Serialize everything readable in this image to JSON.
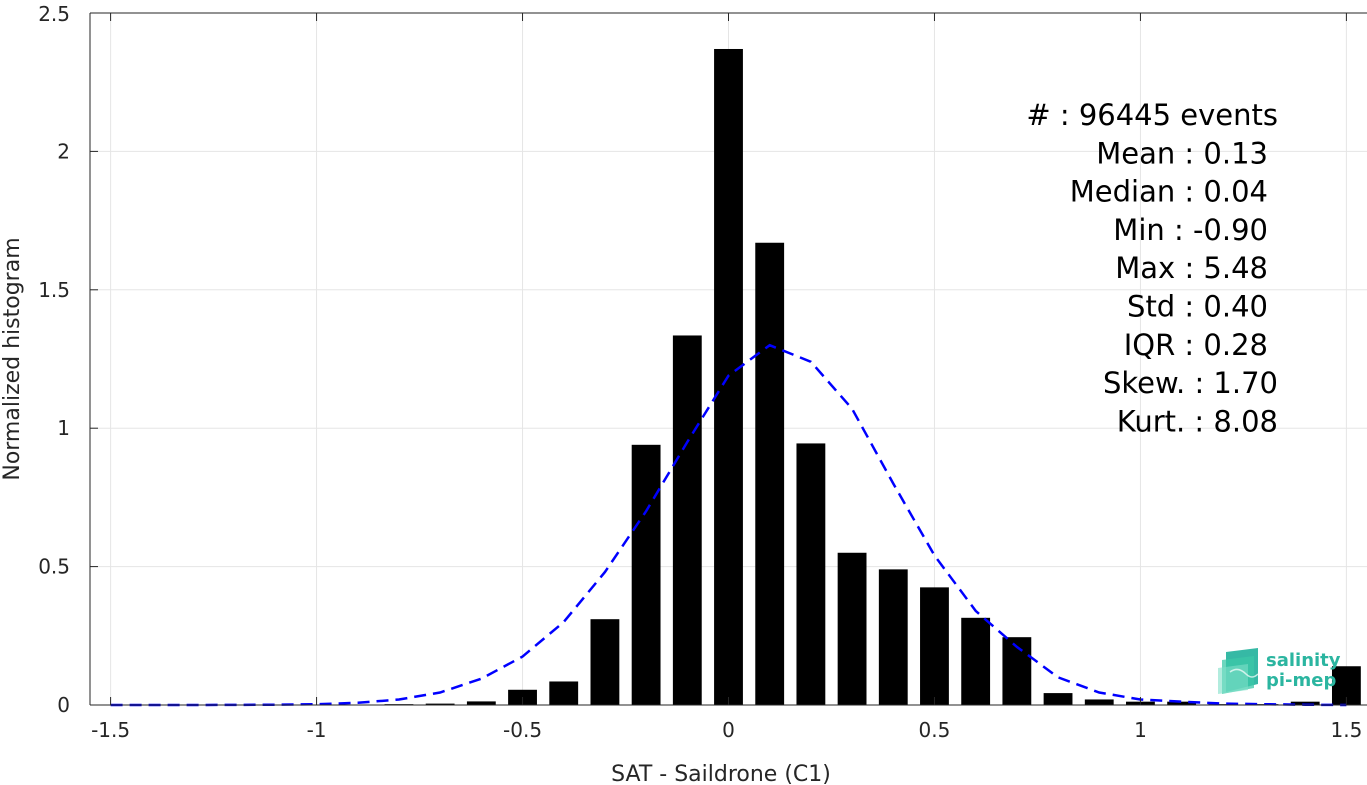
{
  "chart_data": {
    "type": "bar",
    "title": "",
    "xlabel": "SAT - Saildrone (C1)",
    "ylabel": "Normalized histogram",
    "xlim": [
      -1.55,
      1.55
    ],
    "ylim": [
      0,
      2.5
    ],
    "grid": true,
    "x_ticks": [
      {
        "value": -1.5,
        "label": "-1.5"
      },
      {
        "value": -1,
        "label": "-1"
      },
      {
        "value": -0.5,
        "label": "-0.5"
      },
      {
        "value": 0,
        "label": "0"
      },
      {
        "value": 0.5,
        "label": "0.5"
      },
      {
        "value": 1,
        "label": "1"
      },
      {
        "value": 1.5,
        "label": "1.5"
      }
    ],
    "y_ticks": [
      {
        "value": 0,
        "label": "0"
      },
      {
        "value": 0.5,
        "label": "0.5"
      },
      {
        "value": 1,
        "label": "1"
      },
      {
        "value": 1.5,
        "label": "1.5"
      },
      {
        "value": 2,
        "label": "2"
      },
      {
        "value": 2.5,
        "label": "2.5"
      }
    ],
    "bar_width": 0.07,
    "bars": [
      {
        "x": -1.5,
        "y": 0.0
      },
      {
        "x": -1.4,
        "y": 0.0
      },
      {
        "x": -1.3,
        "y": 0.0
      },
      {
        "x": -1.2,
        "y": 0.0
      },
      {
        "x": -1.1,
        "y": 0.0
      },
      {
        "x": -1.0,
        "y": 0.0
      },
      {
        "x": -0.9,
        "y": 0.001
      },
      {
        "x": -0.8,
        "y": 0.003
      },
      {
        "x": -0.7,
        "y": 0.005
      },
      {
        "x": -0.6,
        "y": 0.013
      },
      {
        "x": -0.5,
        "y": 0.055
      },
      {
        "x": -0.4,
        "y": 0.085
      },
      {
        "x": -0.3,
        "y": 0.31
      },
      {
        "x": -0.2,
        "y": 0.94
      },
      {
        "x": -0.1,
        "y": 1.335
      },
      {
        "x": 0.0,
        "y": 2.37
      },
      {
        "x": 0.1,
        "y": 1.67
      },
      {
        "x": 0.2,
        "y": 0.945
      },
      {
        "x": 0.3,
        "y": 0.55
      },
      {
        "x": 0.4,
        "y": 0.49
      },
      {
        "x": 0.5,
        "y": 0.425
      },
      {
        "x": 0.6,
        "y": 0.315
      },
      {
        "x": 0.7,
        "y": 0.245
      },
      {
        "x": 0.8,
        "y": 0.043
      },
      {
        "x": 0.9,
        "y": 0.02
      },
      {
        "x": 1.0,
        "y": 0.012
      },
      {
        "x": 1.1,
        "y": 0.012
      },
      {
        "x": 1.2,
        "y": 0.003
      },
      {
        "x": 1.3,
        "y": 0.003
      },
      {
        "x": 1.4,
        "y": 0.012
      },
      {
        "x": 1.5,
        "y": 0.14
      }
    ],
    "fit_curve": {
      "style": "dashed",
      "color": "#0000ff",
      "points": [
        [
          -1.5,
          0.0
        ],
        [
          -1.3,
          0.0
        ],
        [
          -1.1,
          0.001
        ],
        [
          -1.0,
          0.003
        ],
        [
          -0.9,
          0.008
        ],
        [
          -0.8,
          0.02
        ],
        [
          -0.7,
          0.045
        ],
        [
          -0.6,
          0.095
        ],
        [
          -0.5,
          0.175
        ],
        [
          -0.4,
          0.3
        ],
        [
          -0.3,
          0.48
        ],
        [
          -0.2,
          0.7
        ],
        [
          -0.1,
          0.95
        ],
        [
          0.0,
          1.19
        ],
        [
          0.1,
          1.3
        ],
        [
          0.2,
          1.24
        ],
        [
          0.3,
          1.07
        ],
        [
          0.4,
          0.8
        ],
        [
          0.5,
          0.54
        ],
        [
          0.6,
          0.34
        ],
        [
          0.7,
          0.21
        ],
        [
          0.8,
          0.1
        ],
        [
          0.9,
          0.045
        ],
        [
          1.0,
          0.02
        ],
        [
          1.1,
          0.012
        ],
        [
          1.2,
          0.005
        ],
        [
          1.3,
          0.003
        ],
        [
          1.4,
          0.001
        ],
        [
          1.5,
          0.0
        ]
      ]
    },
    "stats": [
      {
        "label": "#  : 96445 events",
        "anchor": "end",
        "col": "a"
      },
      {
        "label": "Mean : 0.13",
        "anchor": "end",
        "col": "b"
      },
      {
        "label": "Median : 0.04",
        "anchor": "end",
        "col": "b"
      },
      {
        "label": "Min : -0.90",
        "anchor": "end",
        "col": "b"
      },
      {
        "label": "Max : 5.48",
        "anchor": "end",
        "col": "b"
      },
      {
        "label": "Std : 0.40",
        "anchor": "end",
        "col": "b"
      },
      {
        "label": "IQR : 0.28",
        "anchor": "end",
        "col": "b"
      },
      {
        "label": "Skew. : 1.70",
        "anchor": "end",
        "col": "a"
      },
      {
        "label": "Kurt. : 8.08",
        "anchor": "end",
        "col": "a"
      }
    ]
  },
  "logo": {
    "line1": "salinity",
    "line2": "pi-mep",
    "icon": "salinity-pimep-logo-icon",
    "color": "#2bb5a0"
  },
  "colors": {
    "bars": "#000000",
    "grid": "#e5e5e5",
    "axis": "#262626"
  }
}
